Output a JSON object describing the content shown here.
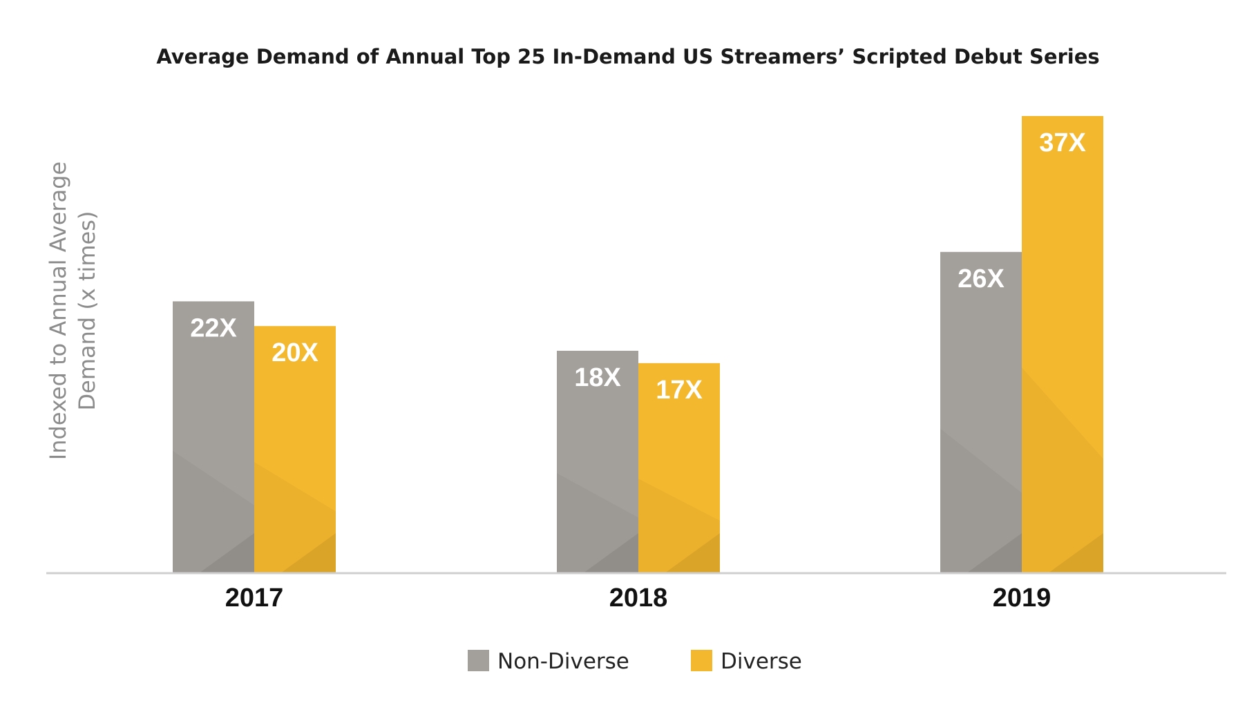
{
  "chart_data": {
    "type": "bar",
    "title": "Average Demand of Annual Top 25 In-Demand US Streamers’ Scripted  Debut Series",
    "ylabel_lines": [
      "Indexed to Annual Average",
      "Demand (x times)"
    ],
    "xlabel": "",
    "categories": [
      "2017",
      "2018",
      "2019"
    ],
    "series": [
      {
        "name": "Non-Diverse",
        "color": "#a39f9b",
        "values": [
          22,
          18,
          26
        ],
        "labels": [
          "22X",
          "18X",
          "26X"
        ]
      },
      {
        "name": "Diverse",
        "color": "#f4b82e",
        "values": [
          20,
          17,
          37
        ],
        "labels": [
          "20X",
          "17X",
          "37X"
        ]
      }
    ],
    "ylim": [
      0,
      37
    ],
    "grid": false,
    "legend_position": "bottom-center"
  }
}
